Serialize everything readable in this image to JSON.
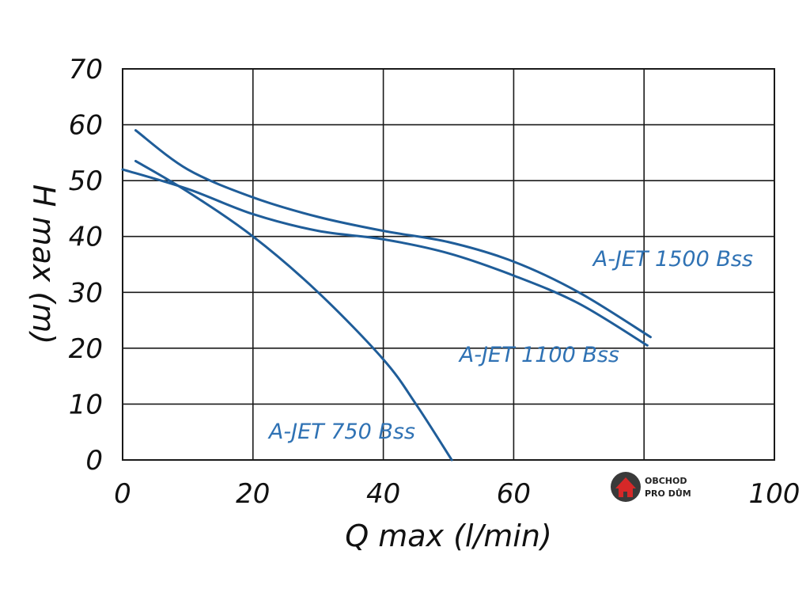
{
  "chart_data": {
    "type": "line",
    "xlabel": "Q max (l/min)",
    "ylabel": "H max (m)",
    "xlim": [
      0,
      100
    ],
    "ylim": [
      0,
      70
    ],
    "x_ticks": [
      "0",
      "20",
      "40",
      "60",
      "100"
    ],
    "y_ticks": [
      "0",
      "10",
      "20",
      "30",
      "40",
      "50",
      "60",
      "70"
    ],
    "grid": true,
    "line_color": "#1f5d99",
    "label_color": "#2f72b4",
    "series": [
      {
        "name": "A-JET 1500 Bss",
        "x": [
          2,
          10,
          20,
          30,
          40,
          50,
          60,
          70,
          81
        ],
        "y": [
          59,
          52,
          47,
          43.5,
          41,
          39,
          35.5,
          30,
          22
        ]
      },
      {
        "name": "A-JET 1100 Bss",
        "x": [
          0,
          10,
          20,
          30,
          40,
          50,
          60,
          70,
          80.5
        ],
        "y": [
          52,
          48.5,
          44,
          41,
          39.5,
          37,
          33,
          28,
          20.5
        ]
      },
      {
        "name": "A-JET 750 Bss",
        "x": [
          2,
          10,
          20,
          30,
          40,
          45,
          50.5
        ],
        "y": [
          53.5,
          48,
          40,
          30,
          18,
          10,
          0
        ]
      }
    ]
  },
  "logo": {
    "line1": "OBCHOD",
    "line2": "PRO DŮM"
  }
}
